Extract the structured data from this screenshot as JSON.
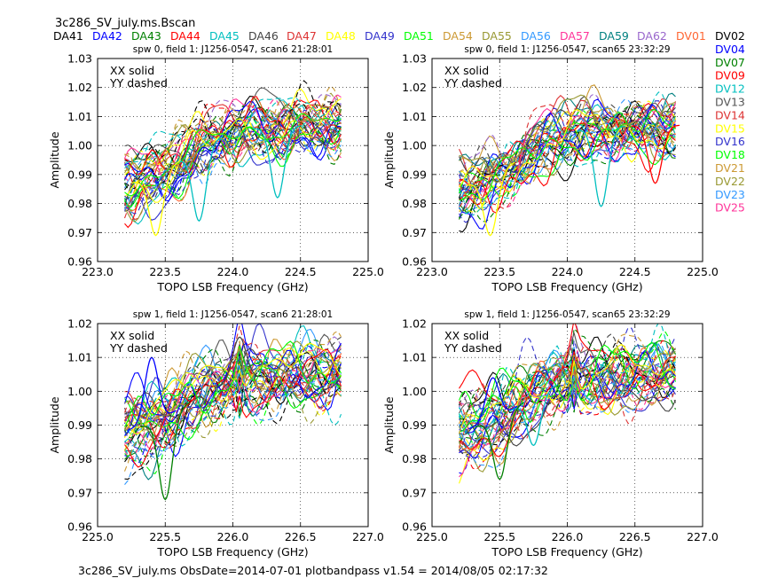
{
  "figure_title": "3c286_SV_july.ms.Bscan",
  "footer": "3c286_SV_july.ms  ObsDate=2014-07-01   plotbandpass v1.54 = 2014/08/05 02:17:32",
  "legend_top": [
    {
      "name": "DA41",
      "color": "#000000"
    },
    {
      "name": "DA42",
      "color": "#0000ff"
    },
    {
      "name": "DA43",
      "color": "#008000"
    },
    {
      "name": "DA44",
      "color": "#ff0000"
    },
    {
      "name": "DA45",
      "color": "#00bfbf"
    },
    {
      "name": "DA46",
      "color": "#444444"
    },
    {
      "name": "DA47",
      "color": "#dd3333"
    },
    {
      "name": "DA48",
      "color": "#ffff00"
    },
    {
      "name": "DA49",
      "color": "#3333cc"
    },
    {
      "name": "DA51",
      "color": "#00ff00"
    },
    {
      "name": "DA54",
      "color": "#cc9933"
    },
    {
      "name": "DA55",
      "color": "#999933"
    },
    {
      "name": "DA56",
      "color": "#3399ff"
    },
    {
      "name": "DA57",
      "color": "#ff3399"
    },
    {
      "name": "DA59",
      "color": "#008080"
    },
    {
      "name": "DA62",
      "color": "#9966cc"
    },
    {
      "name": "DV01",
      "color": "#ff6633"
    }
  ],
  "legend_right": [
    {
      "name": "DV02",
      "color": "#000000"
    },
    {
      "name": "DV04",
      "color": "#0000ff"
    },
    {
      "name": "DV07",
      "color": "#008000"
    },
    {
      "name": "DV09",
      "color": "#ff0000"
    },
    {
      "name": "DV12",
      "color": "#00bfbf"
    },
    {
      "name": "DV13",
      "color": "#555555"
    },
    {
      "name": "DV14",
      "color": "#dd3333"
    },
    {
      "name": "DV15",
      "color": "#ffff00"
    },
    {
      "name": "DV16",
      "color": "#3333cc"
    },
    {
      "name": "DV18",
      "color": "#00ff00"
    },
    {
      "name": "DV21",
      "color": "#cc9933"
    },
    {
      "name": "DV22",
      "color": "#999933"
    },
    {
      "name": "DV23",
      "color": "#3399ff"
    },
    {
      "name": "DV25",
      "color": "#ff3399"
    }
  ],
  "chart_data": [
    {
      "type": "line",
      "title": "spw 0,  field 1: J1256-0547,  scan6  21:28:01",
      "xlabel": "TOPO LSB Frequency (GHz)",
      "ylabel": "Amplitude",
      "xlim": [
        223.0,
        225.0
      ],
      "ylim": [
        0.96,
        1.03
      ],
      "xticks": [
        "223.0",
        "223.5",
        "224.0",
        "224.5",
        "225.0"
      ],
      "yticks": [
        "0.96",
        "0.97",
        "0.98",
        "0.99",
        "1.00",
        "1.01",
        "1.02",
        "1.03"
      ],
      "annotation": [
        "XX solid",
        "YY dashed"
      ],
      "grid": true,
      "x_range": [
        223.2,
        224.8
      ],
      "trend": {
        "start": 0.985,
        "end": 1.007
      },
      "features": [
        {
          "color": "#00bfbf",
          "x": 224.33,
          "y": 0.982
        },
        {
          "color": "#00bfbf",
          "x": 223.75,
          "y": 0.974
        },
        {
          "color": "#ffff00",
          "x": 223.43,
          "y": 0.969
        }
      ]
    },
    {
      "type": "line",
      "title": "spw 0,  field 1: J1256-0547,  scan65  23:32:29",
      "xlabel": "TOPO LSB Frequency (GHz)",
      "ylabel": "Amplitude",
      "xlim": [
        223.0,
        225.0
      ],
      "ylim": [
        0.96,
        1.03
      ],
      "xticks": [
        "223.0",
        "223.5",
        "224.0",
        "224.5",
        "225.0"
      ],
      "yticks": [
        "0.96",
        "0.97",
        "0.98",
        "0.99",
        "1.00",
        "1.01",
        "1.02",
        "1.03"
      ],
      "annotation": [
        "XX solid",
        "YY dashed"
      ],
      "grid": true,
      "x_range": [
        223.2,
        224.8
      ],
      "trend": {
        "start": 0.984,
        "end": 1.007
      },
      "features": [
        {
          "color": "#00bfbf",
          "x": 224.25,
          "y": 0.979
        },
        {
          "color": "#ffff00",
          "x": 223.43,
          "y": 0.969
        },
        {
          "color": "#ff0000",
          "x": 224.65,
          "y": 0.987
        }
      ]
    },
    {
      "type": "line",
      "title": "spw 1,  field 1: J1256-0547,  scan6  21:28:01",
      "xlabel": "TOPO LSB Frequency (GHz)",
      "ylabel": "Amplitude",
      "xlim": [
        225.0,
        227.0
      ],
      "ylim": [
        0.96,
        1.02
      ],
      "xticks": [
        "225.0",
        "225.5",
        "226.0",
        "226.5",
        "227.0"
      ],
      "yticks": [
        "0.96",
        "0.97",
        "0.98",
        "0.99",
        "1.00",
        "1.01",
        "1.02"
      ],
      "annotation": [
        "XX solid",
        "YY dashed"
      ],
      "grid": true,
      "x_range": [
        225.2,
        226.8
      ],
      "trend": {
        "start": 0.987,
        "end": 1.005
      },
      "features": [
        {
          "color": "#008000",
          "x": 225.5,
          "y": 0.968
        },
        {
          "color": "#0000ff",
          "x": 225.4,
          "y": 1.01
        },
        {
          "color": "#444444",
          "x": 226.05,
          "y": 1.016
        }
      ]
    },
    {
      "type": "line",
      "title": "spw 1,  field 1: J1256-0547,  scan65  23:32:29",
      "xlabel": "TOPO LSB Frequency (GHz)",
      "ylabel": "Amplitude",
      "xlim": [
        225.0,
        227.0
      ],
      "ylim": [
        0.96,
        1.02
      ],
      "xticks": [
        "225.0",
        "225.5",
        "226.0",
        "226.5",
        "227.0"
      ],
      "yticks": [
        "0.96",
        "0.97",
        "0.98",
        "0.99",
        "1.00",
        "1.01",
        "1.02"
      ],
      "annotation": [
        "XX solid",
        "YY dashed"
      ],
      "grid": true,
      "x_range": [
        225.2,
        226.8
      ],
      "trend": {
        "start": 0.987,
        "end": 1.005
      },
      "features": [
        {
          "color": "#0000ff",
          "x": 225.45,
          "y": 1.004
        },
        {
          "color": "#00bfbf",
          "x": 225.75,
          "y": 0.984
        },
        {
          "color": "#008000",
          "x": 225.5,
          "y": 0.974
        }
      ]
    }
  ]
}
